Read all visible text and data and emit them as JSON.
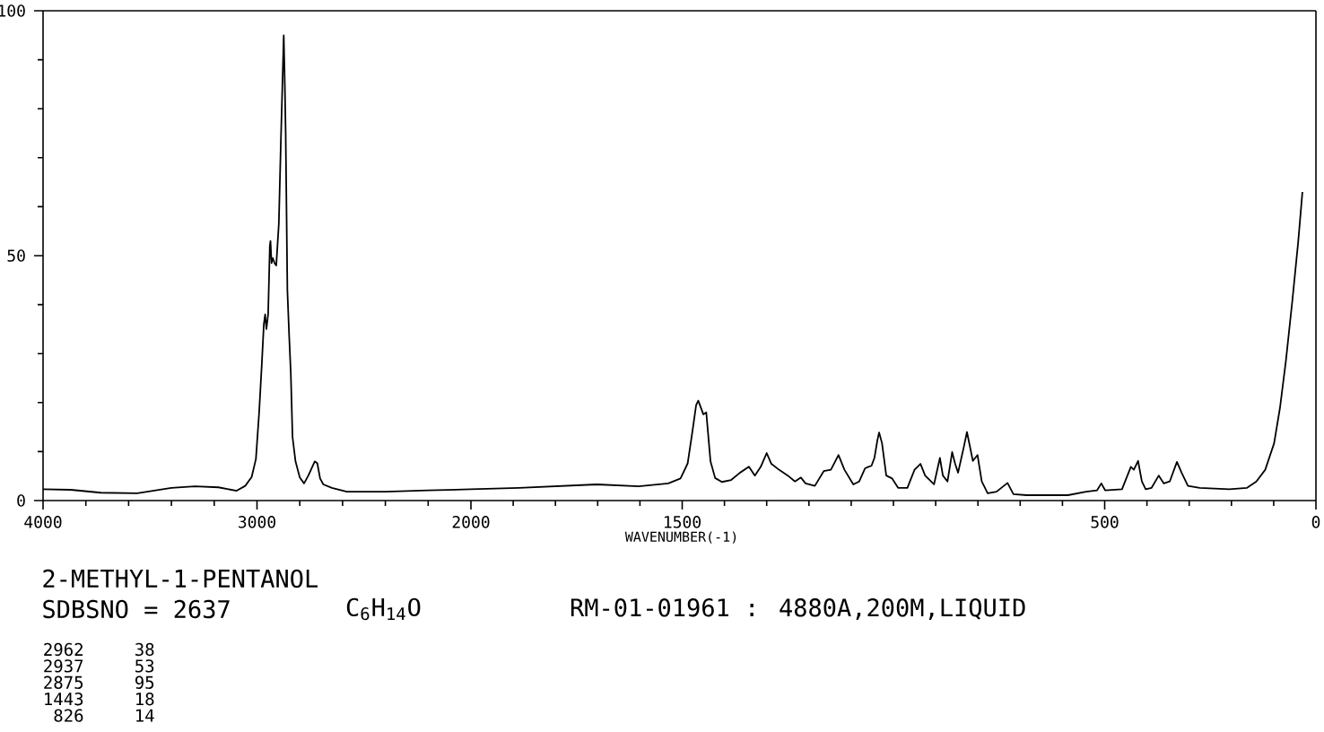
{
  "chart_data": [
    {
      "type": "line",
      "title": "2-METHYL-1-PENTANOL",
      "annotations": [
        "SDBSNO = 2637",
        "C$_{6}$H$_{14}$O",
        "RM-01-01961 : 4880A,200M,LIQUID",
        "2962",
        "38",
        "2937",
        "53",
        "2875",
        "95",
        "1443",
        "18",
        "826",
        "14"
      ],
      "x": [
        4000,
        3870,
        3730,
        3560,
        3400,
        3290,
        3180,
        3095,
        3055,
        3025,
        3005,
        2990,
        2978,
        2968,
        2962,
        2956,
        2948,
        2940,
        2937,
        2932,
        2926,
        2918,
        2910,
        2898,
        2888,
        2875,
        2870,
        2866,
        2858,
        2850,
        2842,
        2834,
        2820,
        2800,
        2780,
        2760,
        2730,
        2718,
        2705,
        2690,
        2650,
        2580,
        2400,
        2200,
        2000
      ],
      "values": [
        2.3,
        2.2,
        1.6,
        1.5,
        2.6,
        2.9,
        2.7,
        2.0,
        3.0,
        4.8,
        8.5,
        18,
        27.5,
        36,
        38,
        35,
        38,
        52,
        53,
        48.5,
        49.5,
        48.5,
        48,
        56.5,
        74,
        95,
        85,
        75,
        43,
        34,
        26,
        13,
        8,
        4.7,
        3.5,
        5.1,
        8.0,
        7.6,
        4.5,
        3.3,
        2.6,
        1.8,
        1.8,
        2.1,
        2.3
      ],
      "color": "#000000",
      "xlim": [
        4000,
        2000
      ],
      "ylim": [
        0,
        100
      ],
      "xticks": [
        4000,
        {
          "value": 3800,
          "label": null
        },
        {
          "value": 3600,
          "label": null
        },
        {
          "value": 3400,
          "label": null
        },
        {
          "value": 3200,
          "label": null
        },
        3000,
        {
          "value": 2800,
          "label": null
        },
        {
          "value": 2600,
          "label": null
        },
        {
          "value": 2400,
          "label": null
        },
        {
          "value": 2200,
          "label": null
        },
        2000
      ],
      "yticks": [
        0,
        {
          "value": 10,
          "label": null
        },
        {
          "value": 20,
          "label": null
        },
        {
          "value": 30,
          "label": null
        },
        {
          "value": 40,
          "label": null
        },
        50,
        {
          "value": 60,
          "label": null
        },
        {
          "value": 70,
          "label": null
        },
        {
          "value": 80,
          "label": null
        },
        {
          "value": 90,
          "label": null
        },
        100
      ]
    },
    {
      "type": "line",
      "xlabel": "WAVENUMBER(-1)",
      "x": [
        2000,
        1886,
        1702,
        1603,
        1533,
        1504,
        1487,
        1476,
        1467,
        1462,
        1455,
        1450,
        1443,
        1439,
        1433,
        1422,
        1406,
        1384,
        1363,
        1342,
        1328,
        1314,
        1300,
        1289,
        1271,
        1250,
        1233,
        1219,
        1208,
        1186,
        1165,
        1148,
        1130,
        1116,
        1095,
        1081,
        1067,
        1059,
        1052,
        1045,
        1038,
        1034,
        1027,
        1017,
        1003,
        989,
        967,
        950,
        936,
        925,
        904,
        890,
        883,
        872,
        861,
        854,
        847,
        833,
        826,
        812,
        801,
        791,
        777,
        756,
        730,
        716,
        685,
        587,
        544,
        518,
        508,
        499,
        459,
        438,
        431,
        421,
        412,
        403,
        389,
        372,
        360,
        346,
        329,
        318,
        303,
        275,
        205,
        163,
        141,
        120,
        99,
        85,
        71,
        56,
        42,
        32
      ],
      "values": [
        2.3,
        2.6,
        3.3,
        2.9,
        3.5,
        4.5,
        7.6,
        14,
        19.5,
        20.4,
        18.8,
        17.6,
        18,
        14,
        8.0,
        4.6,
        3.8,
        4.2,
        5.7,
        6.9,
        5.1,
        6.9,
        9.7,
        7.5,
        6.3,
        5.1,
        3.9,
        4.7,
        3.5,
        3.0,
        6.0,
        6.3,
        9.3,
        6.3,
        3.3,
        3.9,
        6.6,
        6.9,
        7.1,
        8.7,
        12.3,
        13.9,
        11.7,
        5.1,
        4.5,
        2.6,
        2.6,
        6.3,
        7.5,
        5.1,
        3.3,
        8.7,
        5.1,
        3.9,
        9.9,
        7.5,
        5.7,
        11.1,
        14,
        8.1,
        9.3,
        3.9,
        1.5,
        1.8,
        3.6,
        1.3,
        1.1,
        1.1,
        1.8,
        2.1,
        3.5,
        2.1,
        2.3,
        6.9,
        6.3,
        8.1,
        3.9,
        2.3,
        2.6,
        5.1,
        3.5,
        3.9,
        7.9,
        5.7,
        3.0,
        2.6,
        2.3,
        2.6,
        3.9,
        6.3,
        11.7,
        19,
        28.6,
        40.7,
        52.8,
        63
      ],
      "color": "#000000",
      "xlim": [
        2000,
        0
      ],
      "ylim": [
        0,
        100
      ],
      "tick_labels": "x",
      "xticks": [
        {
          "value": 1900,
          "label": null
        },
        {
          "value": 1800,
          "label": null
        },
        {
          "value": 1700,
          "label": null
        },
        {
          "value": 1600,
          "label": null
        },
        1500,
        {
          "value": 1400,
          "label": null
        },
        {
          "value": 1300,
          "label": null
        },
        {
          "value": 1200,
          "label": null
        },
        {
          "value": 1100,
          "label": null
        },
        {
          "value": 1000,
          "label": null
        },
        {
          "value": 900,
          "label": null
        },
        {
          "value": 800,
          "label": null
        },
        {
          "value": 700,
          "label": null
        },
        {
          "value": 600,
          "label": null
        },
        500,
        {
          "value": 400,
          "label": null
        },
        {
          "value": 300,
          "label": null
        },
        {
          "value": 200,
          "label": null
        },
        {
          "value": 100,
          "label": null
        },
        0
      ]
    }
  ]
}
